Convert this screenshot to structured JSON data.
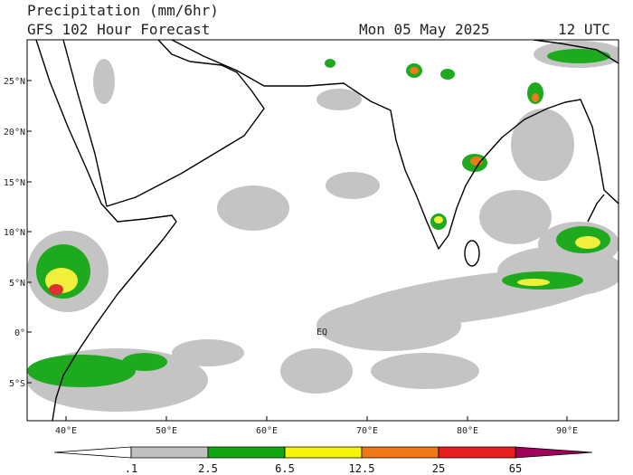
{
  "header": {
    "title": "Precipitation (mm/6hr)",
    "subtitle": "GFS 102 Hour Forecast",
    "date": "Mon 05 May 2025",
    "time": "12 UTC"
  },
  "map": {
    "lat_labels": [
      "25°N",
      "20°N",
      "15°N",
      "10°N",
      "5°N",
      "0°",
      "5°S"
    ],
    "lon_labels": [
      "40°E",
      "50°E",
      "60°E",
      "70°E",
      "80°E",
      "90°E"
    ],
    "equator_label": "EQ"
  },
  "colorbar": {
    "labels": [
      ".1",
      "2.5",
      "6.5",
      "12.5",
      "25",
      "65"
    ],
    "colors": [
      "#ffffff",
      "#c0c0c0",
      "#11a611",
      "#f5f50a",
      "#f07814",
      "#e61e1e",
      "#a0005a"
    ]
  }
}
